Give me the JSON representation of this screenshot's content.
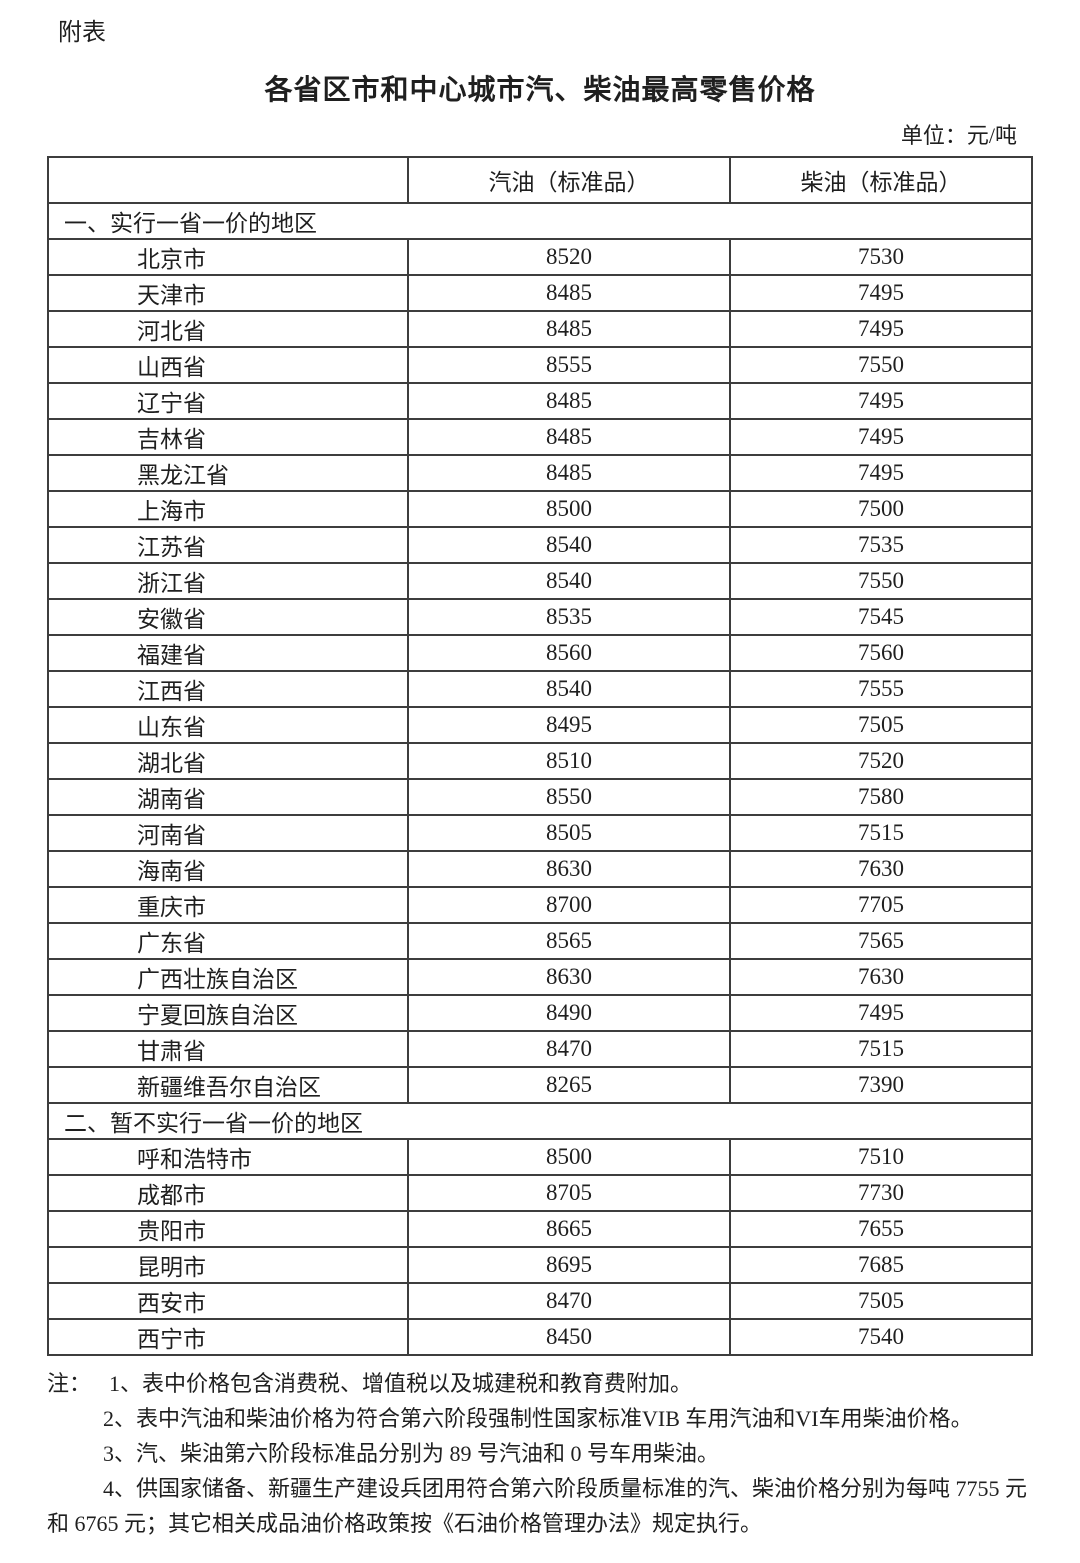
{
  "page": {
    "label": "附表",
    "title": "各省区市和中心城市汽、柴油最高零售价格",
    "unit": "单位：元/吨"
  },
  "table": {
    "columns": [
      "",
      "汽油（标准品）",
      "柴油（标准品）"
    ],
    "sections": [
      {
        "header": "一、实行一省一价的地区",
        "rows": [
          {
            "region": "北京市",
            "gasoline": "8520",
            "diesel": "7530"
          },
          {
            "region": "天津市",
            "gasoline": "8485",
            "diesel": "7495"
          },
          {
            "region": "河北省",
            "gasoline": "8485",
            "diesel": "7495"
          },
          {
            "region": "山西省",
            "gasoline": "8555",
            "diesel": "7550"
          },
          {
            "region": "辽宁省",
            "gasoline": "8485",
            "diesel": "7495"
          },
          {
            "region": "吉林省",
            "gasoline": "8485",
            "diesel": "7495"
          },
          {
            "region": "黑龙江省",
            "gasoline": "8485",
            "diesel": "7495"
          },
          {
            "region": "上海市",
            "gasoline": "8500",
            "diesel": "7500"
          },
          {
            "region": "江苏省",
            "gasoline": "8540",
            "diesel": "7535"
          },
          {
            "region": "浙江省",
            "gasoline": "8540",
            "diesel": "7550"
          },
          {
            "region": "安徽省",
            "gasoline": "8535",
            "diesel": "7545"
          },
          {
            "region": "福建省",
            "gasoline": "8560",
            "diesel": "7560"
          },
          {
            "region": "江西省",
            "gasoline": "8540",
            "diesel": "7555"
          },
          {
            "region": "山东省",
            "gasoline": "8495",
            "diesel": "7505"
          },
          {
            "region": "湖北省",
            "gasoline": "8510",
            "diesel": "7520"
          },
          {
            "region": "湖南省",
            "gasoline": "8550",
            "diesel": "7580"
          },
          {
            "region": "河南省",
            "gasoline": "8505",
            "diesel": "7515"
          },
          {
            "region": "海南省",
            "gasoline": "8630",
            "diesel": "7630"
          },
          {
            "region": "重庆市",
            "gasoline": "8700",
            "diesel": "7705"
          },
          {
            "region": "广东省",
            "gasoline": "8565",
            "diesel": "7565"
          },
          {
            "region": "广西壮族自治区",
            "gasoline": "8630",
            "diesel": "7630"
          },
          {
            "region": "宁夏回族自治区",
            "gasoline": "8490",
            "diesel": "7495"
          },
          {
            "region": "甘肃省",
            "gasoline": "8470",
            "diesel": "7515"
          },
          {
            "region": "新疆维吾尔自治区",
            "gasoline": "8265",
            "diesel": "7390"
          }
        ]
      },
      {
        "header": "二、暂不实行一省一价的地区",
        "rows": [
          {
            "region": "呼和浩特市",
            "gasoline": "8500",
            "diesel": "7510"
          },
          {
            "region": "成都市",
            "gasoline": "8705",
            "diesel": "7730"
          },
          {
            "region": "贵阳市",
            "gasoline": "8665",
            "diesel": "7655"
          },
          {
            "region": "昆明市",
            "gasoline": "8695",
            "diesel": "7685"
          },
          {
            "region": "西安市",
            "gasoline": "8470",
            "diesel": "7505"
          },
          {
            "region": "西宁市",
            "gasoline": "8450",
            "diesel": "7540"
          }
        ]
      }
    ]
  },
  "notes": {
    "label": "注：",
    "items": [
      "1、表中价格包含消费税、增值税以及城建税和教育费附加。",
      "2、表中汽油和柴油价格为符合第六阶段强制性国家标准VIB 车用汽油和VI车用柴油价格。",
      "3、汽、柴油第六阶段标准品分别为 89 号汽油和 0 号车用柴油。",
      "4、供国家储备、新疆生产建设兵团用符合第六阶段质量标准的汽、柴油价格分别为每吨 7755 元和 6765 元；其它相关成品油价格政策按《石油价格管理办法》规定执行。"
    ]
  }
}
